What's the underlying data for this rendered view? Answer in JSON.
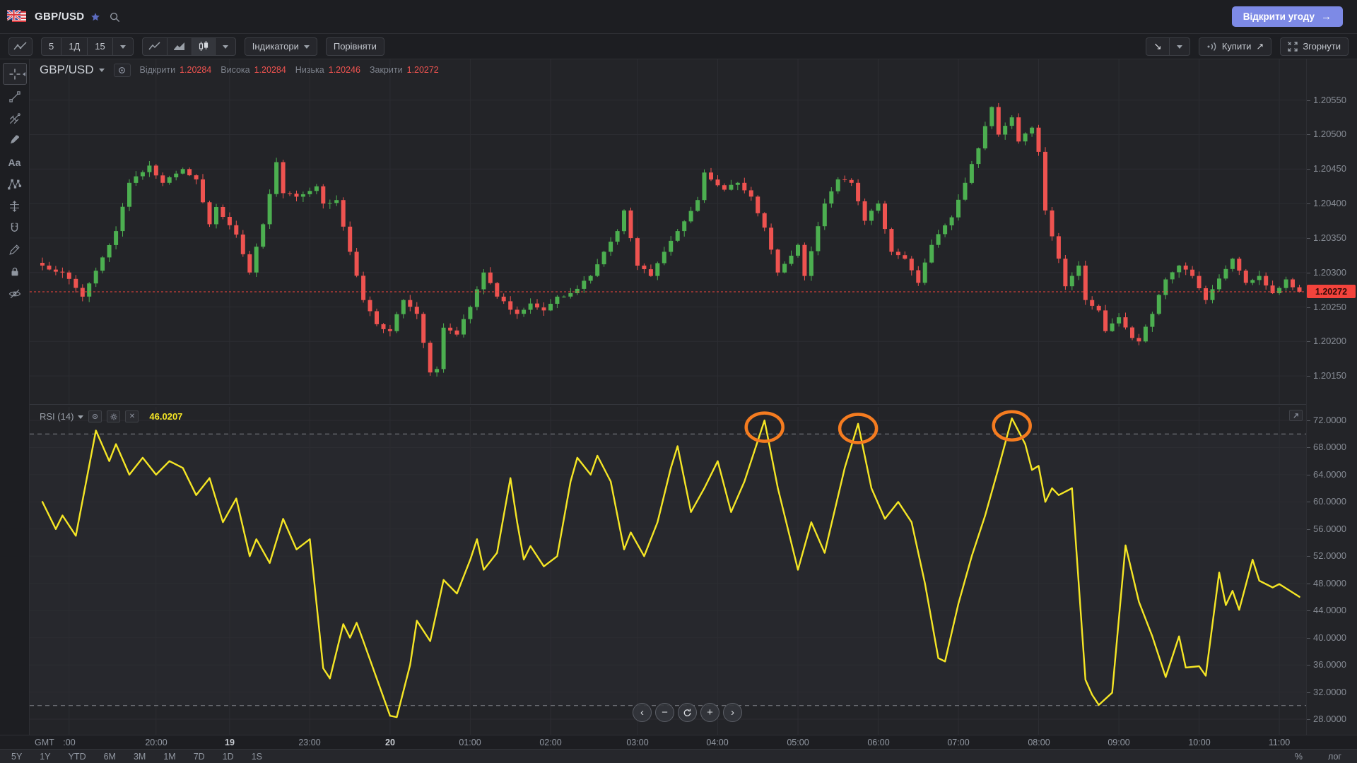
{
  "header": {
    "symbol": "GBP/USD",
    "open_trade": "Відкрити угоду",
    "open_trade_arrow": "→"
  },
  "toolbar": {
    "timeframes": [
      "5",
      "1Д",
      "15"
    ],
    "indicators": "Індикатори",
    "compare": "Порівняти",
    "buy": "Купити",
    "buy_arrow": "↗",
    "sell_arrow": "↘",
    "collapse": "Згорнути"
  },
  "sidebar": {
    "tools": [
      "crosshair",
      "trend-line",
      "pitchfork",
      "brush",
      "text",
      "xabcd-pattern",
      "measure",
      "magnet",
      "pencil",
      "lock",
      "hide"
    ]
  },
  "legend": {
    "symbol": "GBP/USD",
    "open_label": "Відкрити",
    "open": "1.20284",
    "high_label": "Висока",
    "high": "1.20284",
    "low_label": "Низька",
    "low": "1.20246",
    "close_label": "Закрити",
    "close": "1.20272"
  },
  "rsi": {
    "label": "RSI (14)",
    "value": "46.0207"
  },
  "axes": {
    "current_price_label": "1.20272"
  },
  "time": {
    "gmt": "GMT"
  },
  "scale": {
    "percent": "%",
    "log": "лог"
  },
  "ranges": [
    "5Y",
    "1Y",
    "YTD",
    "6M",
    "3M",
    "1M",
    "7D",
    "1D",
    "1S"
  ],
  "nav": {
    "buttons": [
      "pan-left",
      "zoom-out",
      "reset",
      "zoom-in",
      "pan-right"
    ]
  },
  "colors": {
    "candle_up": "#4caf50",
    "candle_down": "#ee5350",
    "rsi_line": "#f5e625",
    "annotation": "#f57c20",
    "price_line": "#f4433c",
    "accent_button": "#7d8ae6",
    "grid": "#2c2d32",
    "level_dash": "#9c9fa6",
    "star": "#5c6bc0"
  },
  "chart_data": [
    {
      "type": "candlestick",
      "symbol": "GBP/USD",
      "timeframe": "5 хв",
      "ohlc_last": {
        "open": 1.20284,
        "high": 1.20284,
        "low": 1.20246,
        "close": 1.20272
      },
      "current_price": 1.20272,
      "num_candles": 189,
      "y_axis": {
        "min": 1.2013,
        "max": 1.2057,
        "ticks": [
          1.2055,
          1.205,
          1.2045,
          1.204,
          1.2035,
          1.203,
          1.2025,
          1.202,
          1.2015
        ]
      },
      "x_axis": {
        "timezone": "GMT",
        "labels": [
          {
            "text": ":00",
            "index": 4,
            "bold": false
          },
          {
            "text": "20:00",
            "index": 17,
            "bold": false
          },
          {
            "text": "19",
            "index": 28,
            "bold": true
          },
          {
            "text": "23:00",
            "index": 40,
            "bold": false
          },
          {
            "text": "20",
            "index": 52,
            "bold": true
          },
          {
            "text": "01:00",
            "index": 64,
            "bold": false
          },
          {
            "text": "02:00",
            "index": 76,
            "bold": false
          },
          {
            "text": "03:00",
            "index": 89,
            "bold": false
          },
          {
            "text": "04:00",
            "index": 101,
            "bold": false
          },
          {
            "text": "05:00",
            "index": 113,
            "bold": false
          },
          {
            "text": "06:00",
            "index": 125,
            "bold": false
          },
          {
            "text": "07:00",
            "index": 137,
            "bold": false
          },
          {
            "text": "08:00",
            "index": 149,
            "bold": false
          },
          {
            "text": "09:00",
            "index": 161,
            "bold": false
          },
          {
            "text": "10:00",
            "index": 173,
            "bold": false
          },
          {
            "text": "11:00",
            "index": 185,
            "bold": false
          }
        ]
      },
      "close_keyframes": [
        [
          0,
          1.2031
        ],
        [
          3,
          1.203
        ],
        [
          6,
          1.20265
        ],
        [
          11,
          1.2036
        ],
        [
          13,
          1.2043
        ],
        [
          16,
          1.20455
        ],
        [
          18,
          1.2043
        ],
        [
          21,
          1.2045
        ],
        [
          23,
          1.20435
        ],
        [
          25,
          1.2037
        ],
        [
          26,
          1.20395
        ],
        [
          29,
          1.20355
        ],
        [
          31,
          1.203
        ],
        [
          33,
          1.2037
        ],
        [
          35,
          1.2046
        ],
        [
          36,
          1.20415
        ],
        [
          38,
          1.2041
        ],
        [
          41,
          1.20425
        ],
        [
          42,
          1.204
        ],
        [
          44,
          1.20405
        ],
        [
          46,
          1.2033
        ],
        [
          48,
          1.2026
        ],
        [
          50,
          1.20225
        ],
        [
          52,
          1.20215
        ],
        [
          54,
          1.2026
        ],
        [
          56,
          1.2024
        ],
        [
          58,
          1.20155
        ],
        [
          59,
          1.2016
        ],
        [
          60,
          1.2022
        ],
        [
          62,
          1.2021
        ],
        [
          64,
          1.2025
        ],
        [
          66,
          1.203
        ],
        [
          68,
          1.20265
        ],
        [
          71,
          1.2024
        ],
        [
          73,
          1.20255
        ],
        [
          75,
          1.20245
        ],
        [
          77,
          1.20265
        ],
        [
          79,
          1.2027
        ],
        [
          82,
          1.20295
        ],
        [
          84,
          1.2033
        ],
        [
          86,
          1.2036
        ],
        [
          87,
          1.2039
        ],
        [
          89,
          1.2031
        ],
        [
          91,
          1.20295
        ],
        [
          93,
          1.2033
        ],
        [
          95,
          1.2036
        ],
        [
          98,
          1.20405
        ],
        [
          99,
          1.20445
        ],
        [
          102,
          1.2042
        ],
        [
          104,
          1.2043
        ],
        [
          106,
          1.2041
        ],
        [
          108,
          1.20365
        ],
        [
          110,
          1.203
        ],
        [
          113,
          1.2034
        ],
        [
          114,
          1.20295
        ],
        [
          117,
          1.204
        ],
        [
          119,
          1.20435
        ],
        [
          121,
          1.2043
        ],
        [
          123,
          1.20375
        ],
        [
          125,
          1.204
        ],
        [
          127,
          1.2033
        ],
        [
          129,
          1.2032
        ],
        [
          131,
          1.20285
        ],
        [
          133,
          1.2034
        ],
        [
          136,
          1.2038
        ],
        [
          138,
          1.2043
        ],
        [
          140,
          1.2048
        ],
        [
          142,
          1.2054
        ],
        [
          143,
          1.205
        ],
        [
          145,
          1.20525
        ],
        [
          146,
          1.2049
        ],
        [
          148,
          1.2051
        ],
        [
          149,
          1.20475
        ],
        [
          150,
          1.2039
        ],
        [
          152,
          1.2032
        ],
        [
          153,
          1.2028
        ],
        [
          155,
          1.2031
        ],
        [
          156,
          1.2026
        ],
        [
          158,
          1.20245
        ],
        [
          159,
          1.20215
        ],
        [
          161,
          1.20235
        ],
        [
          163,
          1.20205
        ],
        [
          164,
          1.202
        ],
        [
          166,
          1.2024
        ],
        [
          168,
          1.2029
        ],
        [
          170,
          1.2031
        ],
        [
          172,
          1.20295
        ],
        [
          174,
          1.2026
        ],
        [
          177,
          1.20305
        ],
        [
          178,
          1.2032
        ],
        [
          180,
          1.20285
        ],
        [
          182,
          1.20295
        ],
        [
          184,
          1.2027
        ],
        [
          186,
          1.2029
        ],
        [
          188,
          1.20272
        ]
      ]
    },
    {
      "type": "line",
      "name": "RSI (14)",
      "value": 46.0207,
      "levels": {
        "overbought": 70,
        "oversold": 30
      },
      "y_axis": {
        "ticks": [
          72,
          68,
          64,
          60,
          56,
          52,
          48,
          44,
          40,
          36,
          32,
          28
        ]
      },
      "keyframes": [
        [
          0,
          60
        ],
        [
          2,
          56
        ],
        [
          3,
          58
        ],
        [
          5,
          55
        ],
        [
          8,
          70.5
        ],
        [
          10,
          66
        ],
        [
          11,
          68.5
        ],
        [
          13,
          64
        ],
        [
          15,
          66.5
        ],
        [
          17,
          64
        ],
        [
          19,
          66
        ],
        [
          21,
          65
        ],
        [
          23,
          61
        ],
        [
          25,
          63.5
        ],
        [
          27,
          57
        ],
        [
          29,
          60.5
        ],
        [
          31,
          52
        ],
        [
          32,
          54.5
        ],
        [
          34,
          51
        ],
        [
          36,
          57.5
        ],
        [
          38,
          53
        ],
        [
          40,
          54.5
        ],
        [
          42,
          35.5
        ],
        [
          43,
          34
        ],
        [
          45,
          42
        ],
        [
          46,
          40
        ],
        [
          47,
          42.2
        ],
        [
          48,
          39.5
        ],
        [
          50,
          34
        ],
        [
          52,
          28.5
        ],
        [
          53,
          28.3
        ],
        [
          55,
          36
        ],
        [
          56,
          42.5
        ],
        [
          58,
          39.5
        ],
        [
          60,
          48.5
        ],
        [
          62,
          46.5
        ],
        [
          64,
          51.5
        ],
        [
          65,
          54.5
        ],
        [
          66,
          50
        ],
        [
          68,
          52.5
        ],
        [
          70,
          63.5
        ],
        [
          71,
          57
        ],
        [
          72,
          51.5
        ],
        [
          73,
          53.5
        ],
        [
          75,
          50.5
        ],
        [
          77,
          52
        ],
        [
          79,
          63
        ],
        [
          80,
          66.5
        ],
        [
          82,
          64
        ],
        [
          83,
          66.8
        ],
        [
          85,
          63
        ],
        [
          87,
          53
        ],
        [
          88,
          55.5
        ],
        [
          90,
          52
        ],
        [
          92,
          57
        ],
        [
          94,
          65
        ],
        [
          95,
          68.2
        ],
        [
          97,
          58.5
        ],
        [
          99,
          62
        ],
        [
          101,
          66
        ],
        [
          103,
          58.5
        ],
        [
          105,
          63
        ],
        [
          108,
          72
        ],
        [
          110,
          62
        ],
        [
          113,
          50
        ],
        [
          115,
          57
        ],
        [
          117,
          52.5
        ],
        [
          120,
          65
        ],
        [
          122,
          71.5
        ],
        [
          124,
          62
        ],
        [
          126,
          57.5
        ],
        [
          128,
          60
        ],
        [
          130,
          57
        ],
        [
          132,
          48
        ],
        [
          134,
          37
        ],
        [
          135,
          36.5
        ],
        [
          137,
          45
        ],
        [
          139,
          52
        ],
        [
          141,
          58
        ],
        [
          143,
          65
        ],
        [
          145,
          72.3
        ],
        [
          147,
          68.5
        ],
        [
          148,
          64.7
        ],
        [
          149,
          65.3
        ],
        [
          150,
          60
        ],
        [
          151,
          62
        ],
        [
          152,
          61
        ],
        [
          154,
          62
        ],
        [
          156,
          33.8
        ],
        [
          157,
          31.6
        ],
        [
          158,
          30.1
        ],
        [
          160,
          31.9
        ],
        [
          162,
          53.6
        ],
        [
          164,
          45.3
        ],
        [
          166,
          40.2
        ],
        [
          168,
          34.2
        ],
        [
          170,
          40.2
        ],
        [
          171,
          35.6
        ],
        [
          173,
          35.8
        ],
        [
          174,
          34.4
        ],
        [
          176,
          49.6
        ],
        [
          177,
          44.8
        ],
        [
          178,
          46.9
        ],
        [
          179,
          44.1
        ],
        [
          181,
          51.5
        ],
        [
          182,
          48.4
        ],
        [
          184,
          47.4
        ],
        [
          185,
          47.9
        ],
        [
          188,
          46.02
        ]
      ],
      "annotations": {
        "circles": [
          {
            "index": 108,
            "value": 71
          },
          {
            "index": 122,
            "value": 70.8
          },
          {
            "index": 145,
            "value": 71.2
          }
        ]
      }
    }
  ]
}
